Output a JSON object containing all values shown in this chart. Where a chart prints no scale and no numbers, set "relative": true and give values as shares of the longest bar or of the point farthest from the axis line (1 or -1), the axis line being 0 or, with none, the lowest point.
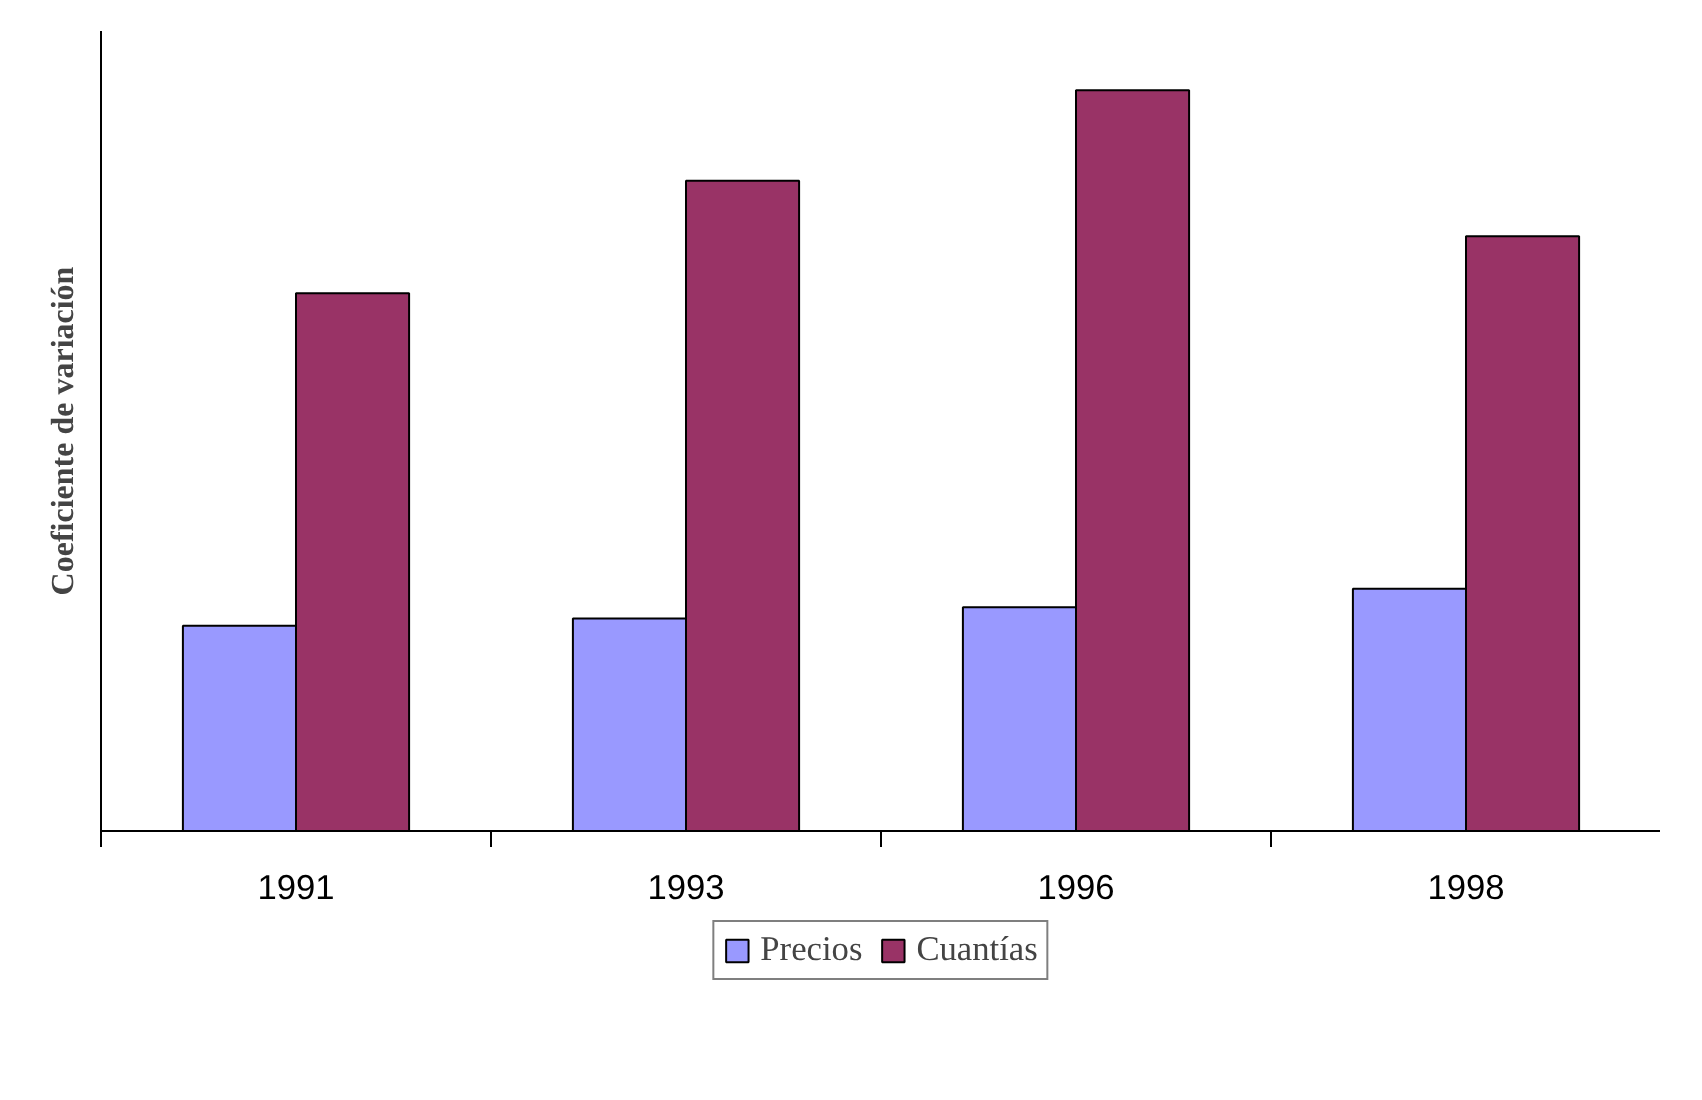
{
  "chart_data": {
    "type": "bar",
    "ylabel": "Coeficiente de variación",
    "categories": [
      "1991",
      "1993",
      "1996",
      "1998"
    ],
    "relative": true,
    "legend": "bottom",
    "series": [
      {
        "name": "Precios",
        "color": "#9999ff",
        "values": [
          0.277,
          0.287,
          0.302,
          0.327
        ]
      },
      {
        "name": "Cuantías",
        "color": "#993366",
        "values": [
          0.726,
          0.878,
          1,
          0.803
        ]
      }
    ]
  }
}
